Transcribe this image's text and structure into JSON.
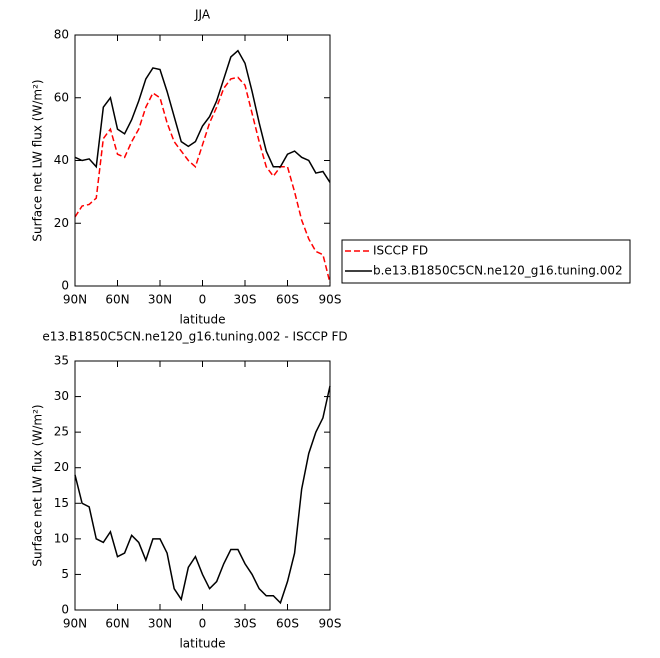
{
  "chart_data": [
    {
      "type": "line",
      "title": "JJA",
      "xlabel": "latitude",
      "ylabel": "Surface net LW flux (W/m²)",
      "x": [
        90,
        85,
        80,
        75,
        70,
        65,
        60,
        55,
        50,
        45,
        40,
        35,
        30,
        25,
        20,
        15,
        10,
        5,
        0,
        -5,
        -10,
        -15,
        -20,
        -25,
        -30,
        -35,
        -40,
        -45,
        -50,
        -55,
        -60,
        -65,
        -70,
        -75,
        -80,
        -85,
        -90
      ],
      "series": [
        {
          "name": "ISCCP FD",
          "color": "#ff0000",
          "linestyle": "dashed",
          "values": [
            22,
            25.5,
            26,
            28,
            47,
            50,
            42,
            41,
            46,
            50,
            57,
            61.5,
            60,
            52,
            46,
            43,
            40,
            38,
            45,
            52,
            57,
            63,
            66,
            66.5,
            64,
            55,
            46,
            38,
            35,
            38,
            38,
            30,
            21,
            15,
            11,
            10,
            1
          ]
        },
        {
          "name": "b.e13.B1850C5CN.ne120_g16.tuning.002",
          "color": "#000000",
          "linestyle": "solid",
          "values": [
            41,
            40,
            40.5,
            38,
            57,
            60,
            50,
            48.5,
            53,
            59,
            66,
            69.5,
            69,
            62,
            54,
            46,
            44.5,
            46,
            51,
            54,
            59,
            66,
            73,
            75,
            71,
            62,
            52,
            43,
            38,
            38,
            42,
            43,
            41,
            40,
            36,
            36.5,
            33
          ]
        }
      ],
      "xlim": [
        90,
        -90
      ],
      "xticks": [
        {
          "value": 90,
          "label": "90N"
        },
        {
          "value": 60,
          "label": "60N"
        },
        {
          "value": 30,
          "label": "30N"
        },
        0,
        {
          "value": -30,
          "label": "30S"
        },
        {
          "value": -60,
          "label": "60S"
        },
        {
          "value": -90,
          "label": "90S"
        }
      ],
      "ylim": [
        0,
        80
      ],
      "yticks": [
        0,
        20,
        40,
        60,
        80
      ],
      "legend": "right"
    },
    {
      "type": "line",
      "title": "e13.B1850C5CN.ne120_g16.tuning.002 - ISCCP FD",
      "xlabel": "latitude",
      "ylabel": "Surface net LW flux (W/m²)",
      "x": [
        90,
        85,
        80,
        75,
        70,
        65,
        60,
        55,
        50,
        45,
        40,
        35,
        30,
        25,
        20,
        15,
        10,
        5,
        0,
        -5,
        -10,
        -15,
        -20,
        -25,
        -30,
        -35,
        -40,
        -45,
        -50,
        -55,
        -60,
        -65,
        -70,
        -75,
        -80,
        -85,
        -90
      ],
      "values": [
        19,
        15,
        14.5,
        10,
        9.5,
        11,
        7.5,
        8,
        10.5,
        9.5,
        7,
        10,
        10,
        8,
        3,
        1.5,
        6,
        7.5,
        5,
        3,
        4,
        6.5,
        8.5,
        8.5,
        6.5,
        5,
        3,
        2,
        2,
        1,
        4,
        8,
        17,
        22,
        25,
        27,
        31.5
      ],
      "color": "#000000",
      "xlim": [
        90,
        -90
      ],
      "xticks": [
        {
          "value": 90,
          "label": "90N"
        },
        {
          "value": 60,
          "label": "60N"
        },
        {
          "value": 30,
          "label": "30N"
        },
        0,
        {
          "value": -30,
          "label": "30S"
        },
        {
          "value": -60,
          "label": "60S"
        },
        {
          "value": -90,
          "label": "90S"
        }
      ],
      "ylim": [
        0,
        35
      ],
      "yticks": [
        0,
        5,
        10,
        15,
        20,
        25,
        30,
        35
      ]
    }
  ]
}
